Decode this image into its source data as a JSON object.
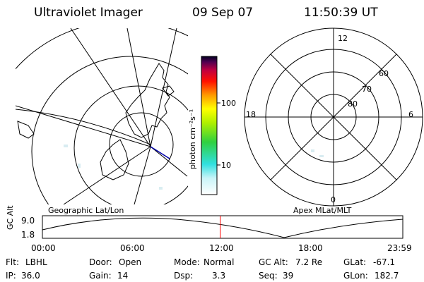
{
  "header": {
    "instrument": "Ultraviolet Imager",
    "date": "09 Sep 07",
    "time": "11:50:39 UT"
  },
  "left_panel": {
    "label": "Geographic Lat/Lon"
  },
  "right_panel": {
    "label": "Apex MLat/MLT",
    "mlt_labels": {
      "top": "12",
      "bottom": "0",
      "left": "18",
      "right": "6"
    },
    "lat_labels": [
      "60",
      "70",
      "80"
    ]
  },
  "colorbar": {
    "unit_label": "photon cm⁻²s⁻¹",
    "ticks": [
      "100",
      "10"
    ]
  },
  "alt_plot": {
    "ylabel": "GC Alt",
    "yticks": [
      "9.0",
      "1.8"
    ],
    "xticks": [
      "00:00",
      "06:00",
      "12:00",
      "18:00",
      "23:59"
    ],
    "current_time_fraction": 0.4935
  },
  "info": {
    "flt_label": "Flt:",
    "flt": "LBHL",
    "ip_label": "IP:",
    "ip": "36.0",
    "door_label": "Door:",
    "door": "Open",
    "gain_label": "Gain:",
    "gain": "14",
    "mode_label": "Mode:",
    "mode": "Normal",
    "dsp_label": "Dsp:",
    "dsp": "3.3",
    "gcalt_label": "GC Alt:",
    "gcalt": "7.2 Re",
    "seq_label": "Seq:",
    "seq": "39",
    "glat_label": "GLat:",
    "glat": "-67.1",
    "glon_label": "GLon:",
    "glon": "182.7"
  },
  "colors": {
    "grid": "#000000",
    "marker": "#ff0000",
    "track": "#0000aa"
  }
}
